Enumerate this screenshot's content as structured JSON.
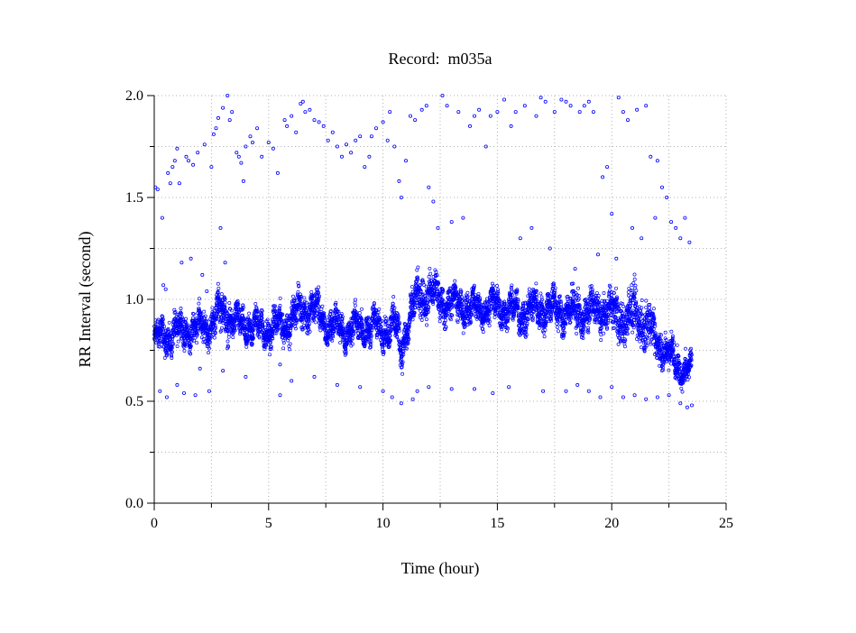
{
  "chart_data": {
    "type": "scatter",
    "title": "Record:  m035a",
    "xlabel": "Time (hour)",
    "ylabel": "RR Interval (second)",
    "xlim": [
      0,
      25
    ],
    "ylim": [
      0,
      2
    ],
    "x_ticks": [
      0,
      5,
      10,
      15,
      20,
      25
    ],
    "x_tick_labels": [
      "0",
      "5",
      "10",
      "15",
      "20",
      "25"
    ],
    "y_ticks": [
      0,
      0.5,
      1,
      1.5,
      2
    ],
    "y_tick_labels": [
      "0.0",
      "0.5",
      "1.0",
      "1.5",
      "2.0"
    ],
    "grid": true,
    "marker": "open-circle",
    "color": "#0000ff",
    "band": {
      "x": [
        0,
        0.5,
        1,
        1.5,
        2,
        2.5,
        3,
        3.5,
        4,
        4.5,
        5,
        5.5,
        6,
        6.5,
        7,
        7.5,
        8,
        8.5,
        9,
        9.5,
        10,
        10.5,
        10.8,
        11,
        11.5,
        12,
        12.5,
        13,
        13.5,
        14,
        14.5,
        15,
        15.5,
        16,
        16.5,
        17,
        17.5,
        18,
        18.5,
        19,
        19.5,
        20,
        20.5,
        21,
        21.5,
        22,
        22.5,
        23,
        23.5
      ],
      "center": [
        0.8,
        0.82,
        0.84,
        0.85,
        0.86,
        0.88,
        0.95,
        0.88,
        0.87,
        0.86,
        0.85,
        0.87,
        0.9,
        0.96,
        0.95,
        0.88,
        0.86,
        0.85,
        0.86,
        0.87,
        0.85,
        0.88,
        0.76,
        0.85,
        1.0,
        1.03,
        1.0,
        0.98,
        0.97,
        0.95,
        0.96,
        0.97,
        0.95,
        0.93,
        0.95,
        0.96,
        0.95,
        0.94,
        0.94,
        0.93,
        0.95,
        0.94,
        0.9,
        0.93,
        0.88,
        0.8,
        0.72,
        0.67,
        0.64
      ],
      "spread": [
        0.07,
        0.06,
        0.06,
        0.06,
        0.06,
        0.06,
        0.08,
        0.06,
        0.06,
        0.06,
        0.06,
        0.06,
        0.06,
        0.07,
        0.07,
        0.06,
        0.06,
        0.06,
        0.06,
        0.06,
        0.06,
        0.07,
        0.08,
        0.07,
        0.08,
        0.08,
        0.07,
        0.06,
        0.07,
        0.06,
        0.06,
        0.07,
        0.06,
        0.07,
        0.07,
        0.07,
        0.07,
        0.07,
        0.07,
        0.07,
        0.07,
        0.08,
        0.1,
        0.1,
        0.1,
        0.08,
        0.07,
        0.06,
        0.05
      ]
    },
    "outliers": [
      [
        0.05,
        1.55
      ],
      [
        0.15,
        1.54
      ],
      [
        0.25,
        0.55
      ],
      [
        0.35,
        1.4
      ],
      [
        0.4,
        1.07
      ],
      [
        0.5,
        1.05
      ],
      [
        0.55,
        0.52
      ],
      [
        0.6,
        1.62
      ],
      [
        0.7,
        1.57
      ],
      [
        0.8,
        1.65
      ],
      [
        0.9,
        1.68
      ],
      [
        1.0,
        1.74
      ],
      [
        1.1,
        1.57
      ],
      [
        1.2,
        1.18
      ],
      [
        1.3,
        0.54
      ],
      [
        1.4,
        1.7
      ],
      [
        1.5,
        1.68
      ],
      [
        1.6,
        1.2
      ],
      [
        1.7,
        1.66
      ],
      [
        1.8,
        0.53
      ],
      [
        1.9,
        1.72
      ],
      [
        2.1,
        1.12
      ],
      [
        2.2,
        1.76
      ],
      [
        2.3,
        1.04
      ],
      [
        2.4,
        0.55
      ],
      [
        2.5,
        1.65
      ],
      [
        2.6,
        1.81
      ],
      [
        2.7,
        1.84
      ],
      [
        2.8,
        1.89
      ],
      [
        2.9,
        1.35
      ],
      [
        3.0,
        1.94
      ],
      [
        3.1,
        1.18
      ],
      [
        3.2,
        2.0
      ],
      [
        3.3,
        1.88
      ],
      [
        3.4,
        1.92
      ],
      [
        3.6,
        1.72
      ],
      [
        3.7,
        1.7
      ],
      [
        3.8,
        1.67
      ],
      [
        3.9,
        1.58
      ],
      [
        4.0,
        1.75
      ],
      [
        4.2,
        1.8
      ],
      [
        4.3,
        1.77
      ],
      [
        4.5,
        1.84
      ],
      [
        4.7,
        1.7
      ],
      [
        5.0,
        1.77
      ],
      [
        5.2,
        1.74
      ],
      [
        5.4,
        1.62
      ],
      [
        5.5,
        0.53
      ],
      [
        5.7,
        1.88
      ],
      [
        5.8,
        1.85
      ],
      [
        6.0,
        1.9
      ],
      [
        6.2,
        1.82
      ],
      [
        6.4,
        1.96
      ],
      [
        6.5,
        1.97
      ],
      [
        6.6,
        1.92
      ],
      [
        6.8,
        1.93
      ],
      [
        7.0,
        1.88
      ],
      [
        7.2,
        1.87
      ],
      [
        7.4,
        1.85
      ],
      [
        7.6,
        1.78
      ],
      [
        7.8,
        1.82
      ],
      [
        8.0,
        1.75
      ],
      [
        8.2,
        1.7
      ],
      [
        8.4,
        1.76
      ],
      [
        8.6,
        1.72
      ],
      [
        8.8,
        1.78
      ],
      [
        9.0,
        1.8
      ],
      [
        9.2,
        1.65
      ],
      [
        9.4,
        1.7
      ],
      [
        9.5,
        1.8
      ],
      [
        9.7,
        1.84
      ],
      [
        10.0,
        1.87
      ],
      [
        10.2,
        1.78
      ],
      [
        10.3,
        1.92
      ],
      [
        10.4,
        0.52
      ],
      [
        10.5,
        1.75
      ],
      [
        10.7,
        1.58
      ],
      [
        10.8,
        1.5
      ],
      [
        11.0,
        1.68
      ],
      [
        11.2,
        1.9
      ],
      [
        11.4,
        1.88
      ],
      [
        11.5,
        0.55
      ],
      [
        11.7,
        1.93
      ],
      [
        11.9,
        1.95
      ],
      [
        12.0,
        1.55
      ],
      [
        12.2,
        1.48
      ],
      [
        12.4,
        1.35
      ],
      [
        12.6,
        2.0
      ],
      [
        12.8,
        1.95
      ],
      [
        13.0,
        1.38
      ],
      [
        13.3,
        1.92
      ],
      [
        13.5,
        1.4
      ],
      [
        13.8,
        1.85
      ],
      [
        14.0,
        1.9
      ],
      [
        14.2,
        1.93
      ],
      [
        14.5,
        1.75
      ],
      [
        14.7,
        1.9
      ],
      [
        14.8,
        0.54
      ],
      [
        15.0,
        1.92
      ],
      [
        15.3,
        1.98
      ],
      [
        15.6,
        1.85
      ],
      [
        15.8,
        1.92
      ],
      [
        16.0,
        1.3
      ],
      [
        16.2,
        1.95
      ],
      [
        16.5,
        1.35
      ],
      [
        16.7,
        1.9
      ],
      [
        16.9,
        1.99
      ],
      [
        17.1,
        1.97
      ],
      [
        17.3,
        1.25
      ],
      [
        17.5,
        1.92
      ],
      [
        17.8,
        1.98
      ],
      [
        18.0,
        1.97
      ],
      [
        18.2,
        1.95
      ],
      [
        18.4,
        1.15
      ],
      [
        18.6,
        1.92
      ],
      [
        18.8,
        1.95
      ],
      [
        19.0,
        1.97
      ],
      [
        19.2,
        1.92
      ],
      [
        19.4,
        1.22
      ],
      [
        19.6,
        1.6
      ],
      [
        19.8,
        1.65
      ],
      [
        20.0,
        1.42
      ],
      [
        20.2,
        1.2
      ],
      [
        20.3,
        1.99
      ],
      [
        20.5,
        1.92
      ],
      [
        20.7,
        1.88
      ],
      [
        20.9,
        1.35
      ],
      [
        21.1,
        1.93
      ],
      [
        21.3,
        1.3
      ],
      [
        21.5,
        1.95
      ],
      [
        21.7,
        1.7
      ],
      [
        21.9,
        1.4
      ],
      [
        22.0,
        1.68
      ],
      [
        22.2,
        1.55
      ],
      [
        22.4,
        1.5
      ],
      [
        22.6,
        1.38
      ],
      [
        22.8,
        1.35
      ],
      [
        23.0,
        1.3
      ],
      [
        23.2,
        1.4
      ],
      [
        23.4,
        1.28
      ],
      [
        23.5,
        0.48
      ],
      [
        1.0,
        0.58
      ],
      [
        2.0,
        0.66
      ],
      [
        3.0,
        0.65
      ],
      [
        4.0,
        0.62
      ],
      [
        5.5,
        0.68
      ],
      [
        6.0,
        0.6
      ],
      [
        7.0,
        0.62
      ],
      [
        8.0,
        0.58
      ],
      [
        9.0,
        0.57
      ],
      [
        10.0,
        0.55
      ],
      [
        10.8,
        0.49
      ],
      [
        11.3,
        0.51
      ],
      [
        12.0,
        0.57
      ],
      [
        13.0,
        0.56
      ],
      [
        14.0,
        0.56
      ],
      [
        15.5,
        0.57
      ],
      [
        17.0,
        0.55
      ],
      [
        18.0,
        0.55
      ],
      [
        18.5,
        0.58
      ],
      [
        19.0,
        0.55
      ],
      [
        19.5,
        0.52
      ],
      [
        20.0,
        0.57
      ],
      [
        20.5,
        0.52
      ],
      [
        21.0,
        0.53
      ],
      [
        21.5,
        0.51
      ],
      [
        22.0,
        0.52
      ],
      [
        22.5,
        0.53
      ],
      [
        23.0,
        0.49
      ],
      [
        23.3,
        0.47
      ]
    ]
  }
}
